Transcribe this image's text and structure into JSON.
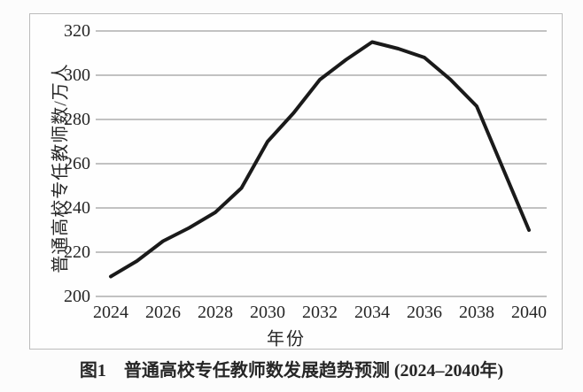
{
  "figure": {
    "caption_label": "图1",
    "caption_title": "普通高校专任教师数发展趋势预测 (2024–2040年)"
  },
  "chart_data": {
    "type": "line",
    "title": "",
    "xlabel": "年份",
    "ylabel": "普通高校专任教师数/万人",
    "x_tick_labels": [
      "2024",
      "2026",
      "2028",
      "2030",
      "2032",
      "2034",
      "2036",
      "2038",
      "2040"
    ],
    "y_tick_labels": [
      "320",
      "300",
      "280",
      "260",
      "240",
      "220",
      "200"
    ],
    "xlim": [
      2024,
      2040
    ],
    "ylim": [
      200,
      320
    ],
    "grid": "horizontal",
    "legend": "none",
    "x": [
      2024,
      2025,
      2026,
      2027,
      2028,
      2029,
      2030,
      2031,
      2032,
      2033,
      2034,
      2035,
      2036,
      2037,
      2038,
      2039,
      2040
    ],
    "values": [
      209,
      216,
      225,
      231,
      238,
      249,
      270,
      283,
      298,
      307,
      315,
      312,
      308,
      298,
      286,
      258,
      230
    ],
    "colors": {
      "line": "#1a1a1a",
      "grid": "#9f9f9f",
      "frame": "#bcbcbc",
      "text": "#262626"
    }
  }
}
